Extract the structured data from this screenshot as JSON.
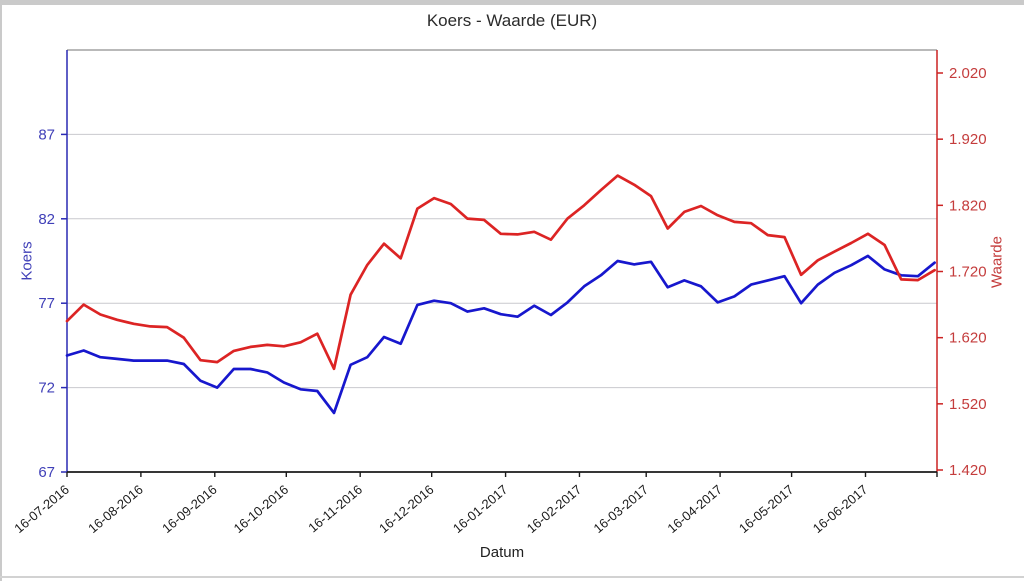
{
  "window": {
    "frame_color": "#cacaca",
    "background": "#ffffff"
  },
  "chart_data": {
    "type": "line",
    "title": "Koers - Waarde (EUR)",
    "xlabel": "Datum",
    "grid": true,
    "grid_color": "#c9c9ce",
    "legend": "none",
    "plot_border_top_color": "#8f8f8f",
    "x_axis_color": "#1a1a1a",
    "x_tick_labels": [
      "16-07-2016",
      "16-08-2016",
      "16-09-2016",
      "16-10-2016",
      "16-11-2016",
      "16-12-2016",
      "16-01-2017",
      "16-02-2017",
      "16-03-2017",
      "16-04-2017",
      "16-05-2017",
      "16-06-2017"
    ],
    "month_day_offsets": [
      0,
      31,
      62,
      92,
      123,
      153,
      184,
      215,
      243,
      274,
      304,
      335,
      365
    ],
    "x_span_days": 365,
    "points_interval_days": 7,
    "y_left": {
      "label": "Koers",
      "color": "#4040b8",
      "axis_line_color": "#2a2ab4",
      "ticks": [
        67,
        72,
        77,
        82,
        87
      ],
      "range": [
        67,
        92
      ]
    },
    "y_right": {
      "label": "Waarde",
      "color": "#c43c3c",
      "axis_line_color": "#cc2222",
      "ticks": [
        {
          "v": 1.42,
          "label": "1.420"
        },
        {
          "v": 1.52,
          "label": "1.520"
        },
        {
          "v": 1.62,
          "label": "1.620"
        },
        {
          "v": 1.72,
          "label": "1.720"
        },
        {
          "v": 1.82,
          "label": "1.820"
        },
        {
          "v": 1.92,
          "label": "1.920"
        },
        {
          "v": 2.02,
          "label": "2.020"
        }
      ],
      "range": [
        1.42,
        2.055
      ]
    },
    "series": [
      {
        "name": "Koers",
        "axis": "left",
        "color": "#1717cd",
        "values": [
          73.9,
          74.2,
          73.8,
          73.7,
          73.6,
          73.6,
          73.6,
          73.4,
          72.4,
          72.0,
          73.1,
          73.1,
          72.9,
          72.3,
          71.9,
          71.8,
          70.5,
          73.35,
          73.8,
          75.0,
          74.6,
          76.9,
          77.15,
          77.0,
          76.5,
          76.7,
          76.35,
          76.2,
          76.85,
          76.3,
          77.05,
          78.0,
          78.65,
          79.5,
          79.3,
          79.45,
          77.95,
          78.35,
          78.0,
          77.05,
          77.4,
          78.1,
          78.35,
          78.6,
          77.0,
          78.1,
          78.8,
          79.25,
          79.8,
          79.0,
          78.65,
          78.6,
          79.4
        ]
      },
      {
        "name": "Waarde",
        "axis": "right",
        "color": "#dc2424",
        "values": [
          1.645,
          1.67,
          1.655,
          1.647,
          1.641,
          1.637,
          1.636,
          1.62,
          1.586,
          1.583,
          1.6,
          1.606,
          1.609,
          1.607,
          1.613,
          1.626,
          1.573,
          1.685,
          1.73,
          1.762,
          1.74,
          1.815,
          1.831,
          1.822,
          1.8,
          1.798,
          1.777,
          1.776,
          1.78,
          1.768,
          1.8,
          1.82,
          1.843,
          1.865,
          1.851,
          1.834,
          1.785,
          1.81,
          1.819,
          1.805,
          1.795,
          1.793,
          1.775,
          1.772,
          1.715,
          1.737,
          1.75,
          1.763,
          1.777,
          1.76,
          1.708,
          1.707,
          1.722
        ]
      }
    ]
  }
}
